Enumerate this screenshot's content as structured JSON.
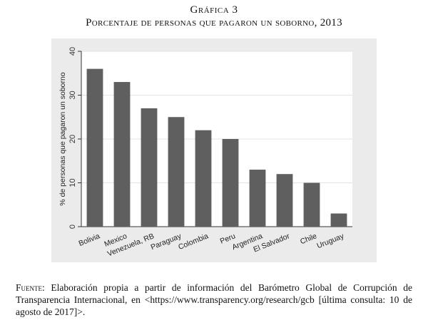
{
  "caption": {
    "number": "Gráfica 3",
    "title": "Porcentaje de personas que pagaron un soborno, 2013"
  },
  "chart_data": {
    "type": "bar",
    "categories": [
      "Bolivia",
      "Mexico",
      "Venezuela, RB",
      "Paraguay",
      "Colombia",
      "Peru",
      "Argentina",
      "El Salvador",
      "Chile",
      "Uruguay"
    ],
    "values": [
      36,
      33,
      27,
      25,
      22,
      20,
      13,
      12,
      10,
      3
    ],
    "ylabel": "% de personas que pagaron un soborno",
    "xlabel": "",
    "ylim": [
      0,
      40
    ],
    "yticks": [
      0,
      10,
      20,
      30,
      40
    ],
    "grid": true,
    "colors": {
      "bar": "#5f5f5f",
      "plot_bg": "#ffffff",
      "panel_bg": "#ebebeb",
      "grid": "#e3e3e3",
      "axis": "#333333"
    }
  },
  "source": {
    "label": "Fuente:",
    "text": "Elaboración propia a partir de información del Barómetro Global de Corrupción de Transparencia Internacional, en <https://www.transparency.org/research/gcb [última consulta: 10 de agosto de 2017]>."
  }
}
